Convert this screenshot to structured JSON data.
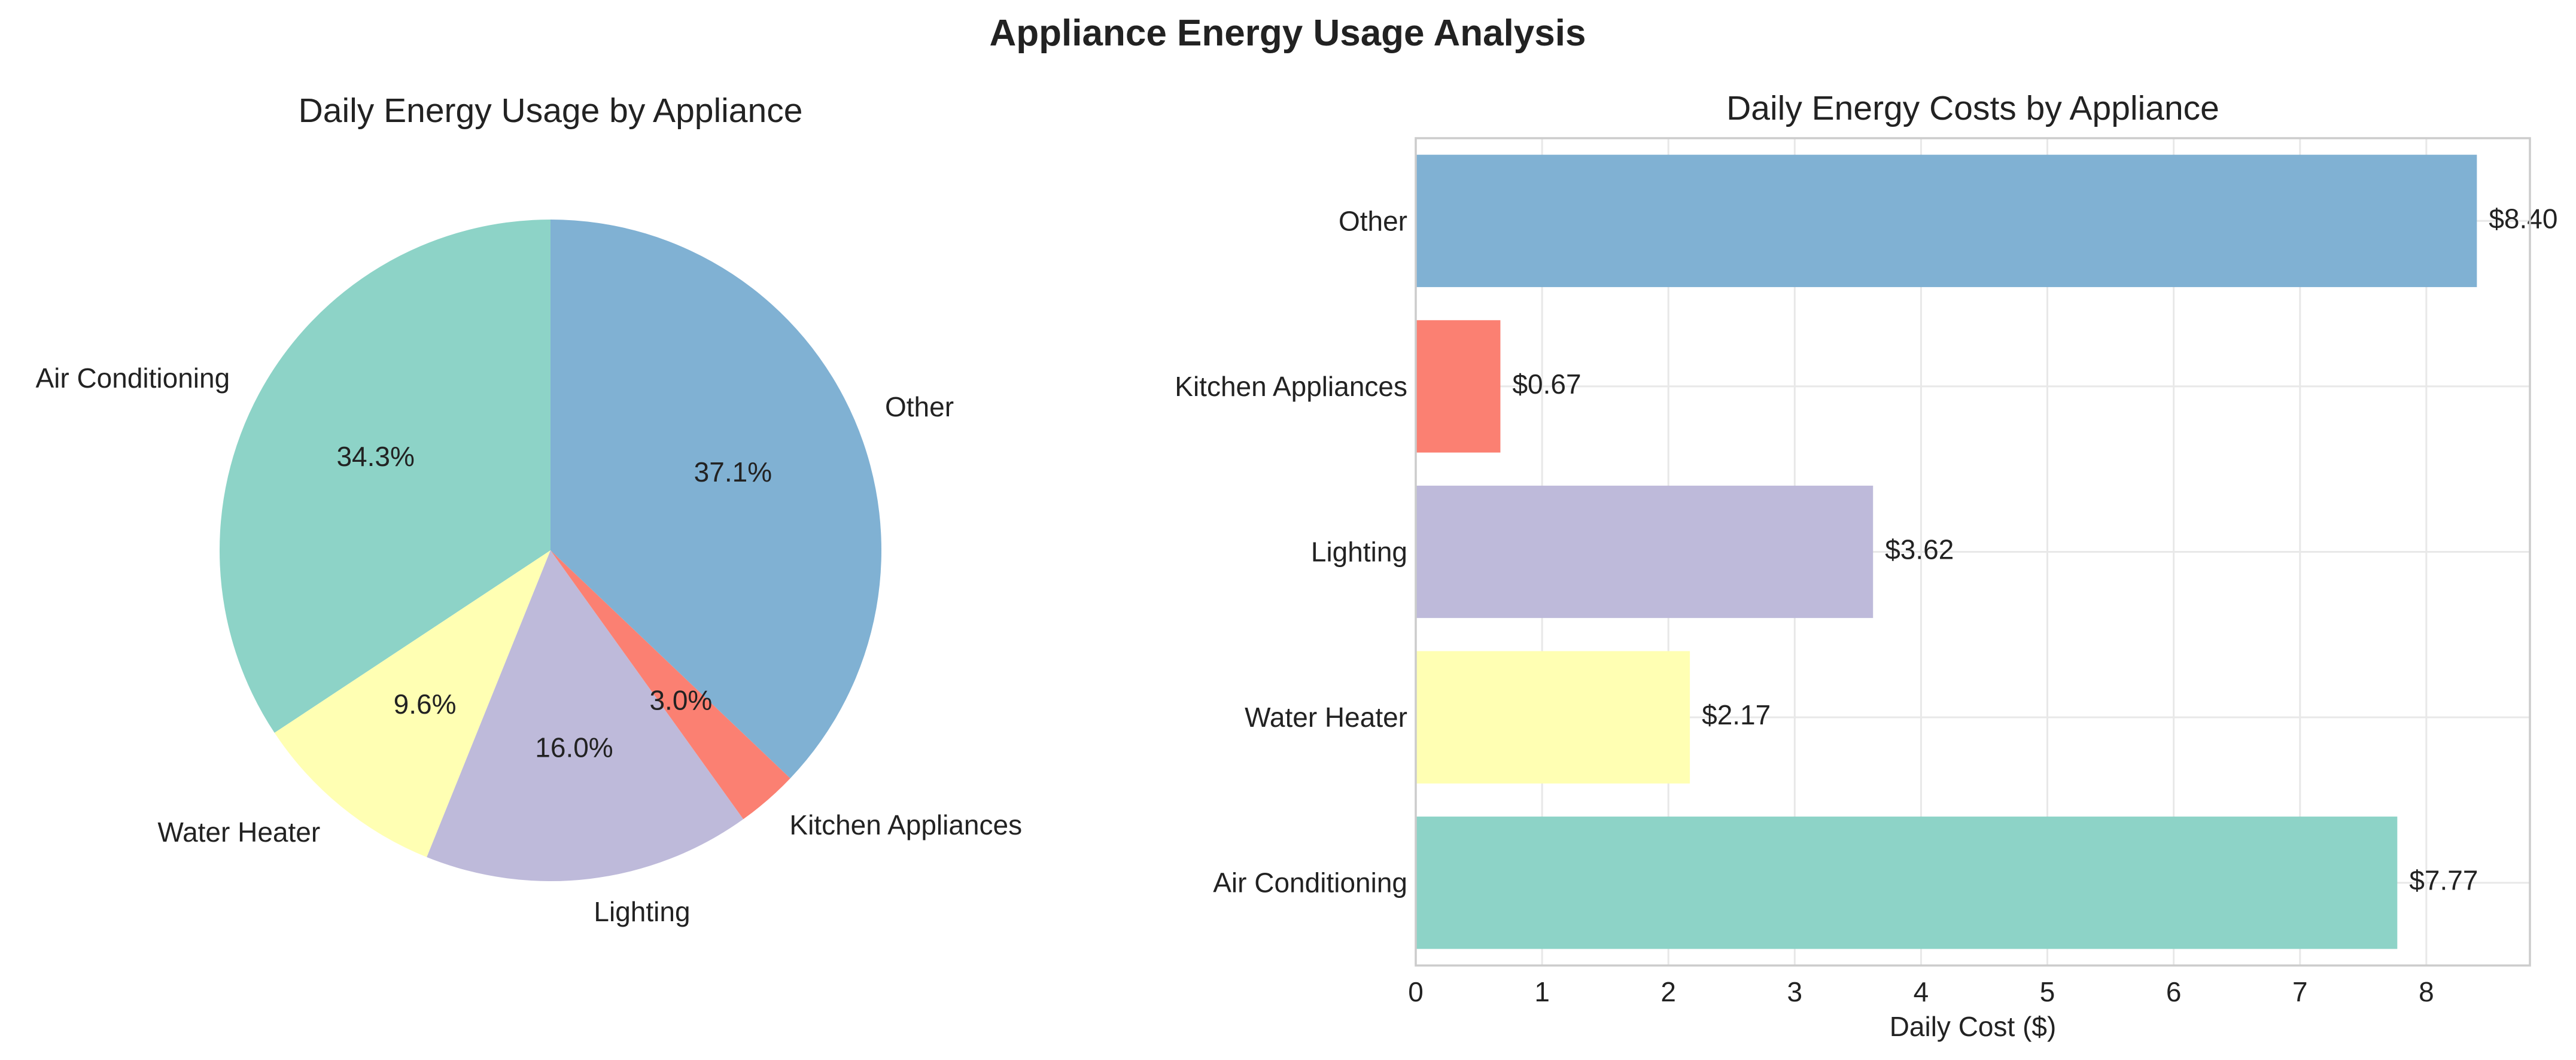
{
  "figure": {
    "title": "Appliance Energy Usage Analysis"
  },
  "colors": {
    "Air Conditioning": "#8dd3c7",
    "Water Heater": "#ffffb3",
    "Lighting": "#bebada",
    "Kitchen Appliances": "#fb8072",
    "Other": "#80b1d3"
  },
  "chart_data": [
    {
      "type": "pie",
      "title": "Daily Energy Usage by Appliance",
      "slices": [
        {
          "label": "Air Conditioning",
          "percent": 34.3,
          "percent_label": "34.3%"
        },
        {
          "label": "Water Heater",
          "percent": 9.6,
          "percent_label": "9.6%"
        },
        {
          "label": "Lighting",
          "percent": 16.0,
          "percent_label": "16.0%"
        },
        {
          "label": "Kitchen Appliances",
          "percent": 3.0,
          "percent_label": "3.0%"
        },
        {
          "label": "Other",
          "percent": 37.1,
          "percent_label": "37.1%"
        }
      ],
      "start_angle_deg": 90,
      "direction": "counterclockwise"
    },
    {
      "type": "bar",
      "orientation": "horizontal",
      "title": "Daily Energy Costs by Appliance",
      "categories": [
        "Air Conditioning",
        "Water Heater",
        "Lighting",
        "Kitchen Appliances",
        "Other"
      ],
      "values": [
        7.77,
        2.17,
        3.62,
        0.67,
        8.4
      ],
      "value_labels": [
        "$7.77",
        "$2.17",
        "$3.62",
        "$0.67",
        "$8.40"
      ],
      "xlabel": "Daily Cost ($)",
      "ylabel": "",
      "xlim": [
        0,
        8.82
      ],
      "xticks": [
        0,
        1,
        2,
        3,
        4,
        5,
        6,
        7,
        8
      ],
      "grid": true
    }
  ]
}
